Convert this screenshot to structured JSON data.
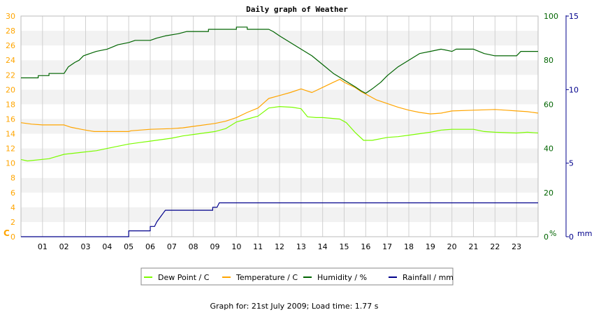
{
  "chart_data": {
    "type": "line",
    "title": "Daily graph of Weather",
    "footer": "Graph for: 21st July 2009; Load time: 1.77 s",
    "x_ticks": [
      "01",
      "02",
      "03",
      "04",
      "05",
      "06",
      "07",
      "08",
      "09",
      "10",
      "11",
      "12",
      "13",
      "14",
      "15",
      "16",
      "17",
      "18",
      "19",
      "20",
      "21",
      "22",
      "23"
    ],
    "xlim": [
      0,
      24
    ],
    "axes": {
      "temp": {
        "label": "C",
        "ylim": [
          0,
          30
        ],
        "ticks": [
          0,
          2,
          4,
          6,
          8,
          10,
          12,
          14,
          16,
          18,
          20,
          22,
          24,
          26,
          28,
          30
        ],
        "color": "#ffa500"
      },
      "humidity": {
        "label": "%",
        "ylim": [
          0,
          100
        ],
        "ticks": [
          0,
          20,
          40,
          60,
          80,
          100
        ],
        "color": "#006400"
      },
      "rain": {
        "label": "mm",
        "ylim": [
          0,
          15
        ],
        "ticks": [
          0,
          5,
          10,
          15
        ],
        "color": "#00008b"
      }
    },
    "grid": true,
    "legend_position": "bottom",
    "series": [
      {
        "name": "Dew Point / C",
        "axis": "temp",
        "color": "#7cfc00",
        "points": [
          [
            0,
            10.5
          ],
          [
            0.3,
            10.3
          ],
          [
            1.3,
            10.6
          ],
          [
            2,
            11.2
          ],
          [
            2.9,
            11.5
          ],
          [
            3.5,
            11.7
          ],
          [
            4,
            12
          ],
          [
            5,
            12.6
          ],
          [
            5.5,
            12.8
          ],
          [
            6,
            13
          ],
          [
            7,
            13.4
          ],
          [
            7.5,
            13.7
          ],
          [
            8,
            13.9
          ],
          [
            9,
            14.3
          ],
          [
            9.5,
            14.7
          ],
          [
            10,
            15.6
          ],
          [
            10.5,
            16
          ],
          [
            11,
            16.4
          ],
          [
            11.5,
            17.5
          ],
          [
            12,
            17.7
          ],
          [
            12.6,
            17.6
          ],
          [
            13,
            17.4
          ],
          [
            13.3,
            16.3
          ],
          [
            13.7,
            16.2
          ],
          [
            14,
            16.2
          ],
          [
            14.8,
            16
          ],
          [
            15.1,
            15.5
          ],
          [
            15.5,
            14.2
          ],
          [
            15.9,
            13.1
          ],
          [
            16.3,
            13.1
          ],
          [
            17,
            13.5
          ],
          [
            17.5,
            13.6
          ],
          [
            18,
            13.8
          ],
          [
            18.5,
            14
          ],
          [
            19,
            14.2
          ],
          [
            19.5,
            14.5
          ],
          [
            20,
            14.6
          ],
          [
            21,
            14.6
          ],
          [
            21.5,
            14.3
          ],
          [
            22,
            14.2
          ],
          [
            23,
            14.1
          ],
          [
            23.5,
            14.2
          ],
          [
            24,
            14.1
          ]
        ]
      },
      {
        "name": "Temperature / C",
        "axis": "temp",
        "color": "#ffa500",
        "points": [
          [
            0,
            15.5
          ],
          [
            0.5,
            15.3
          ],
          [
            1,
            15.2
          ],
          [
            2,
            15.2
          ],
          [
            2.3,
            14.9
          ],
          [
            2.8,
            14.6
          ],
          [
            3,
            14.5
          ],
          [
            3.4,
            14.3
          ],
          [
            4,
            14.3
          ],
          [
            5,
            14.3
          ],
          [
            5.1,
            14.4
          ],
          [
            6,
            14.6
          ],
          [
            7,
            14.7
          ],
          [
            7.5,
            14.8
          ],
          [
            8,
            15
          ],
          [
            9,
            15.4
          ],
          [
            9.5,
            15.7
          ],
          [
            10,
            16.2
          ],
          [
            10.5,
            16.9
          ],
          [
            11,
            17.5
          ],
          [
            11.5,
            18.8
          ],
          [
            12,
            19.2
          ],
          [
            12.5,
            19.6
          ],
          [
            13,
            20.1
          ],
          [
            13.3,
            19.8
          ],
          [
            13.5,
            19.6
          ],
          [
            14,
            20.3
          ],
          [
            14.5,
            21
          ],
          [
            14.8,
            21.4
          ],
          [
            15,
            21
          ],
          [
            15.5,
            20.3
          ],
          [
            15.8,
            19.7
          ],
          [
            16,
            19.4
          ],
          [
            16.5,
            18.6
          ],
          [
            17,
            18.1
          ],
          [
            17.5,
            17.6
          ],
          [
            18,
            17.2
          ],
          [
            18.5,
            16.9
          ],
          [
            19,
            16.7
          ],
          [
            19.5,
            16.8
          ],
          [
            20,
            17.1
          ],
          [
            21,
            17.2
          ],
          [
            22,
            17.3
          ],
          [
            22.5,
            17.2
          ],
          [
            23,
            17.1
          ],
          [
            23.5,
            17
          ],
          [
            24,
            16.8
          ]
        ]
      },
      {
        "name": "Humidity / %",
        "axis": "humidity",
        "color": "#006400",
        "points": [
          [
            0,
            72
          ],
          [
            0.8,
            72
          ],
          [
            0.8,
            73
          ],
          [
            1.3,
            73
          ],
          [
            1.3,
            74
          ],
          [
            2,
            74
          ],
          [
            2.2,
            77
          ],
          [
            2.5,
            79
          ],
          [
            2.7,
            80
          ],
          [
            2.9,
            82
          ],
          [
            3.2,
            83
          ],
          [
            3.5,
            84
          ],
          [
            4,
            85
          ],
          [
            4.5,
            87
          ],
          [
            5,
            88
          ],
          [
            5.3,
            89
          ],
          [
            6,
            89
          ],
          [
            6.3,
            90
          ],
          [
            6.7,
            91
          ],
          [
            7.3,
            92
          ],
          [
            7.7,
            93
          ],
          [
            8.7,
            93
          ],
          [
            8.7,
            94
          ],
          [
            10,
            94
          ],
          [
            10,
            95
          ],
          [
            10.5,
            95
          ],
          [
            10.5,
            94
          ],
          [
            11.5,
            94
          ],
          [
            11.7,
            93
          ],
          [
            12,
            91
          ],
          [
            12.5,
            88
          ],
          [
            13,
            85
          ],
          [
            13.5,
            82
          ],
          [
            14,
            78
          ],
          [
            14.5,
            74
          ],
          [
            15,
            71
          ],
          [
            15.5,
            68
          ],
          [
            15.8,
            66
          ],
          [
            16,
            65
          ],
          [
            16.3,
            67
          ],
          [
            16.7,
            70
          ],
          [
            17,
            73
          ],
          [
            17.5,
            77
          ],
          [
            18,
            80
          ],
          [
            18.5,
            83
          ],
          [
            19,
            84
          ],
          [
            19.5,
            85
          ],
          [
            20,
            84
          ],
          [
            20.2,
            85
          ],
          [
            21,
            85
          ],
          [
            21.5,
            83
          ],
          [
            22,
            82
          ],
          [
            22.5,
            82
          ],
          [
            23,
            82
          ],
          [
            23.2,
            84
          ],
          [
            24,
            84
          ]
        ]
      },
      {
        "name": "Rainfall / mm",
        "axis": "rain",
        "color": "#00008b",
        "points": [
          [
            0,
            0
          ],
          [
            5,
            0
          ],
          [
            5,
            0.4
          ],
          [
            6,
            0.4
          ],
          [
            6,
            0.7
          ],
          [
            6.2,
            0.7
          ],
          [
            6.3,
            1
          ],
          [
            6.5,
            1.4
          ],
          [
            6.6,
            1.6
          ],
          [
            6.7,
            1.8
          ],
          [
            8.9,
            1.8
          ],
          [
            8.9,
            2
          ],
          [
            9.1,
            2
          ],
          [
            9.2,
            2.3
          ],
          [
            24,
            2.3
          ]
        ]
      }
    ]
  }
}
